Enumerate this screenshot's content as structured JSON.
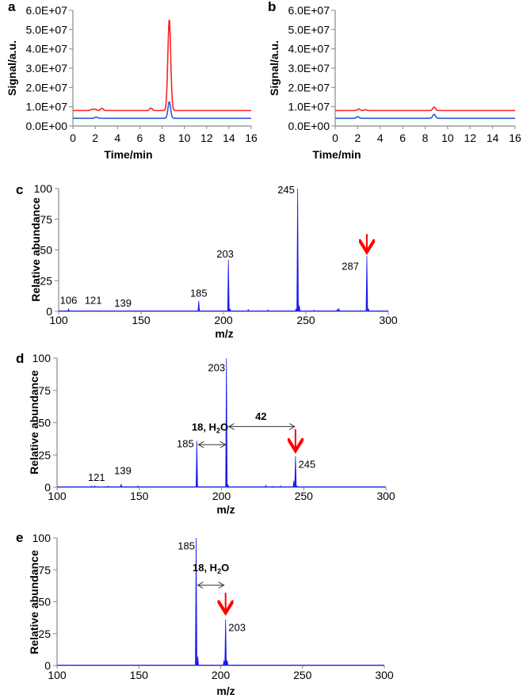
{
  "chart_data": [
    {
      "panel": "a",
      "type": "line",
      "xlabel": "Time/min",
      "ylabel": "Signal/a.u.",
      "xlim": [
        0,
        16
      ],
      "ylim": [
        0,
        60000000
      ],
      "xticks": [
        "0",
        "2",
        "4",
        "6",
        "8",
        "10",
        "12",
        "14",
        "16"
      ],
      "yticks": [
        "0.0E+00",
        "1.0E+07",
        "2.0E+07",
        "3.0E+07",
        "4.0E+07",
        "5.0E+07",
        "6.0E+07"
      ],
      "series": [
        {
          "name": "red trace",
          "color": "#ff2020",
          "baseline": 8000000,
          "peaks": [
            {
              "x": 1.7,
              "y": 8600000
            },
            {
              "x": 2.0,
              "y": 8700000
            },
            {
              "x": 2.6,
              "y": 9200000
            },
            {
              "x": 7.0,
              "y": 9300000
            },
            {
              "x": 8.65,
              "y": 55000000
            }
          ]
        },
        {
          "name": "blue trace",
          "color": "#2a5bd7",
          "baseline": 4000000,
          "peaks": [
            {
              "x": 2.1,
              "y": 4600000
            },
            {
              "x": 8.65,
              "y": 12500000
            }
          ]
        }
      ]
    },
    {
      "panel": "b",
      "type": "line",
      "xlabel": "Time/min",
      "ylabel": "Signal/a.u.",
      "xlim": [
        0,
        16
      ],
      "ylim": [
        0,
        60000000
      ],
      "xticks": [
        "0",
        "2",
        "4",
        "6",
        "8",
        "10",
        "12",
        "14",
        "16"
      ],
      "yticks": [
        "0.0E+00",
        "1.0E+07",
        "2.0E+07",
        "3.0E+07",
        "4.0E+07",
        "5.0E+07",
        "6.0E+07"
      ],
      "series": [
        {
          "name": "red trace",
          "color": "#ff2020",
          "baseline": 8000000,
          "peaks": [
            {
              "x": 2.1,
              "y": 8800000
            },
            {
              "x": 2.7,
              "y": 8400000
            },
            {
              "x": 8.8,
              "y": 9800000
            }
          ]
        },
        {
          "name": "blue trace",
          "color": "#2a5bd7",
          "baseline": 4000000,
          "peaks": [
            {
              "x": 2.0,
              "y": 4800000
            },
            {
              "x": 8.8,
              "y": 6000000
            }
          ]
        }
      ]
    },
    {
      "panel": "c",
      "type": "bar",
      "xlabel": "m/z",
      "ylabel": "Relative abundance",
      "xlim": [
        100,
        300
      ],
      "ylim": [
        0,
        100
      ],
      "xticks": [
        "100",
        "150",
        "200",
        "250",
        "300"
      ],
      "yticks": [
        "0",
        "25",
        "50",
        "75",
        "100"
      ],
      "color": "#1a1aee",
      "peaks": [
        [
          106,
          2
        ],
        [
          185,
          8.5
        ],
        [
          203,
          42
        ],
        [
          204,
          2
        ],
        [
          215,
          1.5
        ],
        [
          227,
          1.2
        ],
        [
          244,
          2
        ],
        [
          245,
          100
        ],
        [
          246,
          5
        ],
        [
          255,
          1
        ],
        [
          269,
          1.5
        ],
        [
          270,
          2.5
        ],
        [
          283,
          0.8
        ],
        [
          287,
          45
        ],
        [
          288,
          2
        ]
      ],
      "labels": [
        {
          "text": "106",
          "mz": 106,
          "ab": 6
        },
        {
          "text": "121",
          "mz": 121,
          "ab": 6
        },
        {
          "text": "139",
          "mz": 139,
          "ab": 4
        },
        {
          "text": "185",
          "mz": 185,
          "ab": 12
        },
        {
          "text": "203",
          "mz": 201,
          "ab": 44
        },
        {
          "text": "245",
          "mz": 238,
          "ab": 96
        },
        {
          "text": "287",
          "mz": 277,
          "ab": 34
        }
      ],
      "red_arrows": [
        {
          "mz": 287,
          "from": 63,
          "to": 47
        }
      ],
      "double_arrows": []
    },
    {
      "panel": "d",
      "type": "bar",
      "xlabel": "m/z",
      "ylabel": "Relative abundance",
      "xlim": [
        100,
        300
      ],
      "ylim": [
        0,
        100
      ],
      "xticks": [
        "100",
        "150",
        "200",
        "250",
        "300"
      ],
      "yticks": [
        "0",
        "25",
        "50",
        "75",
        "100"
      ],
      "color": "#1a1aee",
      "peaks": [
        [
          121,
          1
        ],
        [
          123,
          1
        ],
        [
          131,
          1
        ],
        [
          139,
          2.5
        ],
        [
          149,
          1
        ],
        [
          185,
          36
        ],
        [
          203,
          100
        ],
        [
          204,
          2
        ],
        [
          227,
          1.5
        ],
        [
          231,
          0.8
        ],
        [
          236,
          1
        ],
        [
          244,
          5
        ],
        [
          245,
          24
        ],
        [
          246,
          1
        ]
      ],
      "labels": [
        {
          "text": "121",
          "mz": 124,
          "ab": 5
        },
        {
          "text": "139",
          "mz": 140,
          "ab": 10
        },
        {
          "text": "185",
          "mz": 178,
          "ab": 31
        },
        {
          "text": "203",
          "mz": 197,
          "ab": 90
        },
        {
          "text": "245",
          "mz": 252,
          "ab": 15
        }
      ],
      "red_arrows": [
        {
          "mz": 245,
          "from": 45,
          "to": 27
        }
      ],
      "double_arrows": [
        {
          "label": "18, H",
          "sub": "2",
          "tail": "O",
          "from": 186,
          "to": 202.5,
          "ab": 33,
          "label_mz": 193,
          "label_ab": 44
        },
        {
          "label": "42",
          "sub": "",
          "tail": "",
          "from": 204.5,
          "to": 244.5,
          "ab": 47,
          "label_mz": 224,
          "label_ab": 52
        }
      ]
    },
    {
      "panel": "e",
      "type": "bar",
      "xlabel": "m/z",
      "ylabel": "Relative abundance",
      "xlim": [
        100,
        300
      ],
      "ylim": [
        0,
        100
      ],
      "xticks": [
        "100",
        "150",
        "200",
        "250",
        "300"
      ],
      "yticks": [
        "0",
        "25",
        "50",
        "75",
        "100"
      ],
      "color": "#1a1aee",
      "peaks": [
        [
          185,
          100
        ],
        [
          186,
          7
        ],
        [
          202,
          4
        ],
        [
          203,
          36
        ],
        [
          204,
          4
        ],
        [
          209,
          0.5
        ]
      ],
      "labels": [
        {
          "text": "185",
          "mz": 179,
          "ab": 91
        },
        {
          "text": "203",
          "mz": 210,
          "ab": 27
        }
      ],
      "red_arrows": [
        {
          "mz": 203,
          "from": 57,
          "to": 40
        }
      ],
      "double_arrows": [
        {
          "label": "18, H",
          "sub": "2",
          "tail": "O",
          "from": 186,
          "to": 202,
          "ab": 63,
          "label_mz": 194,
          "label_ab": 74
        }
      ]
    }
  ]
}
